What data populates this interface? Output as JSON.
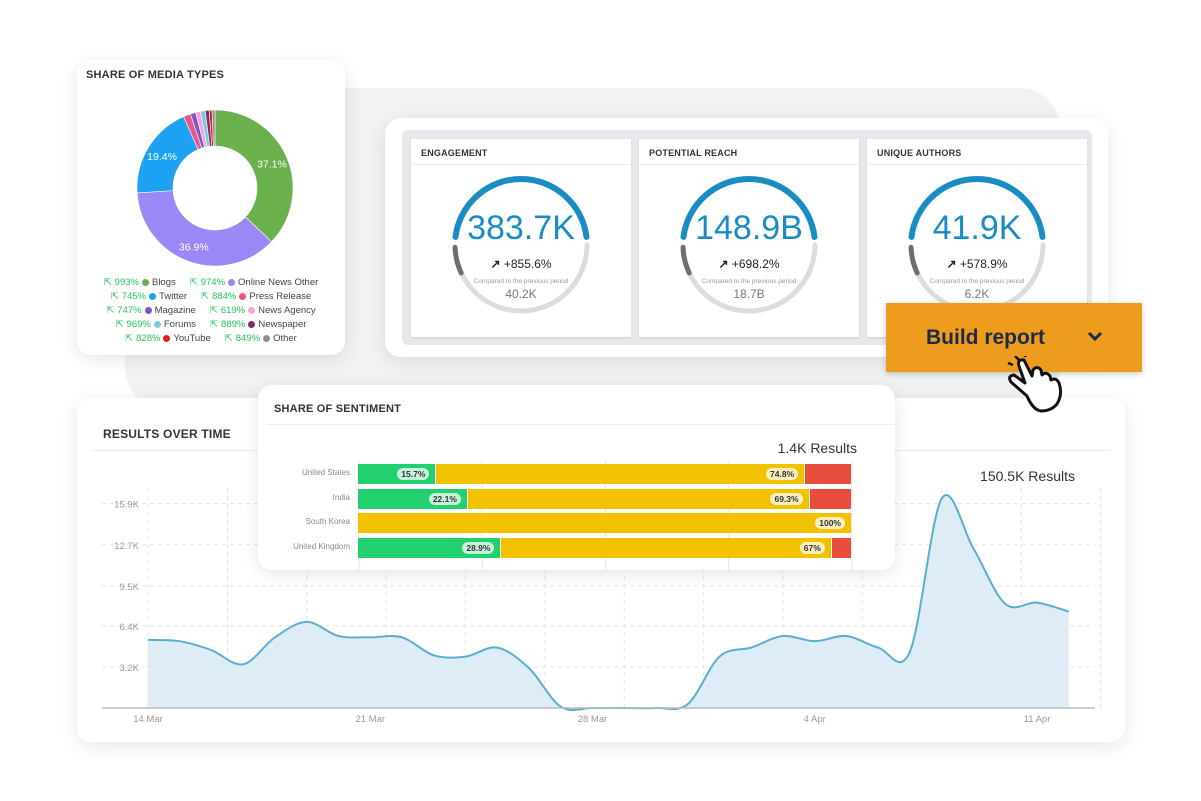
{
  "media": {
    "title": "SHARE OF MEDIA TYPES",
    "slices": [
      {
        "name": "Blogs",
        "pct": 37.1,
        "color": "#6ab04c",
        "label": "37.1%"
      },
      {
        "name": "Online News Other",
        "pct": 36.9,
        "color": "#9b87f5",
        "label": "36.9%"
      },
      {
        "name": "Twitter",
        "pct": 19.4,
        "color": "#1da1f2",
        "label": "19.4%"
      },
      {
        "name": "Press Release",
        "pct": 1.5,
        "color": "#e8588a"
      },
      {
        "name": "Magazine",
        "pct": 1.1,
        "color": "#7e57c2"
      },
      {
        "name": "News Agency",
        "pct": 1.0,
        "color": "#f5a3d9"
      },
      {
        "name": "Forums",
        "pct": 1.0,
        "color": "#7ec8e3"
      },
      {
        "name": "Newspaper",
        "pct": 0.8,
        "color": "#7b2d6b"
      },
      {
        "name": "YouTube",
        "pct": 0.6,
        "color": "#e11d1d"
      },
      {
        "name": "Other",
        "pct": 0.6,
        "color": "#8a8f94"
      }
    ],
    "legend": [
      [
        {
          "chg": "993%",
          "name": "Blogs",
          "color": "#6ab04c"
        },
        {
          "chg": "974%",
          "name": "Online News Other",
          "color": "#9b87f5"
        }
      ],
      [
        {
          "chg": "745%",
          "name": "Twitter",
          "color": "#1da1f2"
        },
        {
          "chg": "884%",
          "name": "Press Release",
          "color": "#e8588a"
        }
      ],
      [
        {
          "chg": "747%",
          "name": "Magazine",
          "color": "#7e57c2"
        },
        {
          "chg": "619%",
          "name": "News Agency",
          "color": "#f5a3d9"
        }
      ],
      [
        {
          "chg": "969%",
          "name": "Forums",
          "color": "#7ec8e3"
        },
        {
          "chg": "889%",
          "name": "Newspaper",
          "color": "#7b2d6b"
        }
      ],
      [
        {
          "chg": "828%",
          "name": "YouTube",
          "color": "#e11d1d"
        },
        {
          "chg": "849%",
          "name": "Other",
          "color": "#8a8f94"
        }
      ]
    ]
  },
  "kpis": [
    {
      "title": "ENGAGEMENT",
      "value": "383.7K",
      "change": "+855.6%",
      "compare": "Compared to the previous period",
      "previous": "40.2K"
    },
    {
      "title": "POTENTIAL REACH",
      "value": "148.9B",
      "change": "+698.2%",
      "compare": "Compared to the previous period",
      "previous": "18.7B"
    },
    {
      "title": "UNIQUE AUTHORS",
      "value": "41.9K",
      "change": "+578.9%",
      "compare": "Compared to the previous period",
      "previous": "6.2K"
    }
  ],
  "build_report": {
    "label": "Build report"
  },
  "sentiment": {
    "title": "SHARE OF SENTIMENT",
    "count": "1.4K Results",
    "colors": {
      "positive": "#22d06f",
      "neutral": "#f2c200",
      "negative": "#e84c3d"
    },
    "rows": [
      {
        "name": "United States",
        "positive": 15.7,
        "neutral": 74.8,
        "negative": 9.5,
        "pos_label": "15.7%",
        "neu_label": "74.8%"
      },
      {
        "name": "India",
        "positive": 22.1,
        "neutral": 69.3,
        "negative": 8.6,
        "pos_label": "22.1%",
        "neu_label": "69.3%"
      },
      {
        "name": "South Korea",
        "positive": 0,
        "neutral": 100,
        "negative": 0,
        "pos_label": "",
        "neu_label": "100%"
      },
      {
        "name": "United Kingdom",
        "positive": 28.9,
        "neutral": 67,
        "negative": 4.1,
        "pos_label": "28.9%",
        "neu_label": "67%"
      }
    ]
  },
  "results": {
    "title": "RESULTS OVER TIME",
    "count": "150.5K Results",
    "chart_data": {
      "type": "area",
      "y_ticks": [
        "3.2K",
        "6.4K",
        "9.5K",
        "12.7K",
        "15.9K"
      ],
      "y_tick_values": [
        3.2,
        6.4,
        9.5,
        12.7,
        15.9
      ],
      "x_ticks": [
        "14 Mar",
        "21 Mar",
        "28 Mar",
        "4 Apr",
        "11 Apr"
      ],
      "ylim": [
        0,
        17
      ],
      "grid": true,
      "color": "#5aaed0",
      "x": [
        "14 Mar",
        "15 Mar",
        "16 Mar",
        "17 Mar",
        "18 Mar",
        "19 Mar",
        "20 Mar",
        "21 Mar",
        "22 Mar",
        "23 Mar",
        "24 Mar",
        "25 Mar",
        "26 Mar",
        "27 Mar",
        "28 Mar",
        "29 Mar",
        "30 Mar",
        "31 Mar",
        "1 Apr",
        "2 Apr",
        "3 Apr",
        "4 Apr",
        "5 Apr",
        "6 Apr",
        "7 Apr",
        "8 Apr",
        "9 Apr",
        "10 Apr",
        "11 Apr",
        "12 Apr"
      ],
      "values_k": [
        5.3,
        5.2,
        4.5,
        3.4,
        5.5,
        6.7,
        5.6,
        5.5,
        5.5,
        4.1,
        4.0,
        4.7,
        3.1,
        0.1,
        0,
        0,
        0,
        0.3,
        4.0,
        4.7,
        5.6,
        5.2,
        5.6,
        4.7,
        4.4,
        16.3,
        12.4,
        8.1,
        8.2,
        7.5
      ]
    }
  }
}
